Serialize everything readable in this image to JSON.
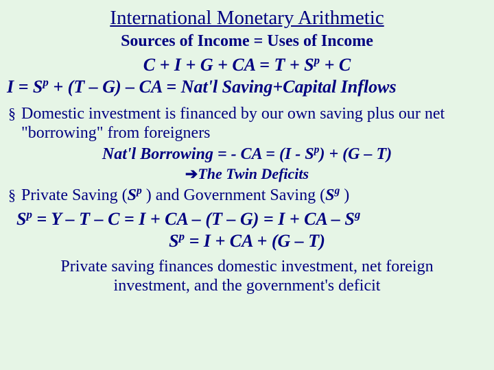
{
  "colors": {
    "background": "#e6f5e6",
    "text": "#000080"
  },
  "title": "International Monetary Arithmetic",
  "subtitle": "Sources of Income = Uses of Income",
  "eq1": {
    "pre": "C + I + G + CA = T + S",
    "sup": "p",
    "post": " + C"
  },
  "eq2": {
    "pre": "I = S",
    "sup": "p",
    "post": " + (T – G) – CA = Nat'l Saving+Capital Inflows"
  },
  "bullet1": {
    "text": "Domestic investment is financed by our own saving plus our net \"borrowing\" from foreigners"
  },
  "eq_borrow": {
    "pre": "Nat'l Borrowing = - CA = (I - S",
    "sup": "p",
    "post": ") + (G – T)"
  },
  "twin": {
    "arrow": "➔",
    "text": "The Twin Deficits"
  },
  "bullet2": {
    "t1": "Private Saving (",
    "s1": "S",
    "sup1": "p",
    "t2": " ) and Government Saving (",
    "s2": "S",
    "sup2": "g",
    "t3": " )"
  },
  "eq_sp1": {
    "pre": "S",
    "sup1": "p",
    "mid": " = Y – T – C = I + CA – (T – G) = I + CA – S",
    "sup2": "g"
  },
  "eq_sp2": {
    "pre": "S",
    "sup": "p",
    "post": " = I + CA + (G – T)"
  },
  "closing": "Private saving finances domestic investment, net foreign investment, and the government's deficit"
}
